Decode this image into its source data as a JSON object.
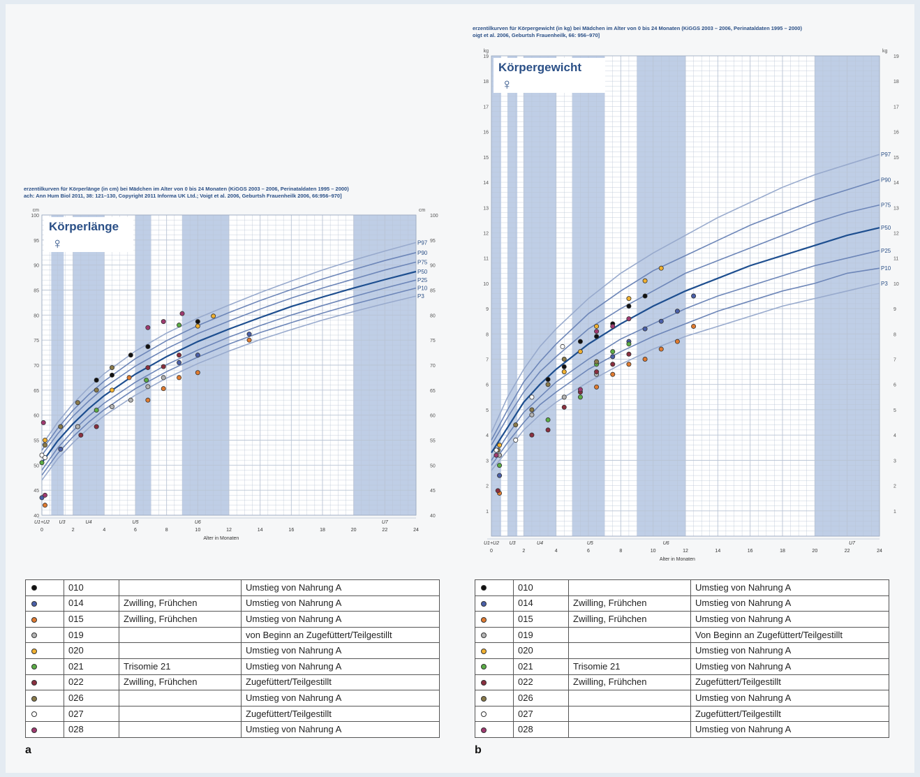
{
  "colors": {
    "accent": "#2a4f86",
    "band": "#a9bddd",
    "grid": "#b9c4d4",
    "median": "#1d4e8f",
    "curve": "#6d86b8",
    "curve_light": "#98aacd"
  },
  "series_colors": {
    "010": "#111111",
    "014": "#4a5fa8",
    "015": "#e07b30",
    "019": "#b3b3b3",
    "020": "#f0b030",
    "021": "#5bac45",
    "022": "#8a2f3f",
    "026": "#8a7a4a",
    "027": "#ffffff",
    "028": "#a03a70"
  },
  "panels": [
    {
      "id": "a",
      "letter": "a",
      "header_line1": "erzentilkurven für Körperlänge (in cm) bei Mädchen im Alter von 0 bis 24 Monaten (KiGGS 2003 – 2006, Perinataldaten 1995 – 2000)",
      "header_line2": "ach: Ann Hum Biol 2011, 38: 121–130, Copyright 2011 Informa UK Ltd.; Voigt et al. 2006, Geburtsh Frauenheilk 2006, 66:956–970]",
      "title": "Körperlänge",
      "symbol": "♀",
      "unit": "cm",
      "xlabel": "Alter in Monaten",
      "u_labels": [
        "U1+U2",
        "U3",
        "U4",
        "U5",
        "U6",
        "U7"
      ],
      "percentile_labels": [
        "P97",
        "P90",
        "P75",
        "P50",
        "P25",
        "P10",
        "P3"
      ]
    },
    {
      "id": "b",
      "letter": "b",
      "header_line1": "erzentilkurven für Körpergewicht (in kg) bei Mädchen im Alter von 0 bis 24 Monaten (KiGGS 2003 – 2006, Perinataldaten 1995 – 2000)",
      "header_line2": "oigt et al. 2006, Geburtsh Frauenheilk, 66: 956–970]",
      "title": "Körpergewicht",
      "symbol": "♀",
      "unit": "kg",
      "xlabel": "Alter in Monaten",
      "u_labels": [
        "U1+U2",
        "U3",
        "U4",
        "U5",
        "U6",
        "U7"
      ],
      "percentile_labels": [
        "P97",
        "P90",
        "P75",
        "P50",
        "P25",
        "P10",
        "P3"
      ]
    }
  ],
  "chart_data": [
    {
      "type": "scatter",
      "title": "Körperlänge",
      "xlabel": "Alter in Monaten",
      "ylabel": "cm",
      "xlim": [
        0,
        24
      ],
      "ylim": [
        40,
        100
      ],
      "xticks": [
        0,
        2,
        4,
        6,
        8,
        10,
        12,
        14,
        16,
        18,
        20,
        22,
        24
      ],
      "yticks": [
        40,
        45,
        50,
        55,
        60,
        65,
        70,
        75,
        80,
        85,
        90,
        95,
        100
      ],
      "grid": true,
      "percentiles": {
        "x": [
          0,
          1,
          2,
          3,
          4,
          6,
          8,
          10,
          12,
          14,
          16,
          18,
          20,
          22,
          24
        ],
        "P97": [
          54,
          58.5,
          62.3,
          65.5,
          68.3,
          72.8,
          76.4,
          79.4,
          82.0,
          84.5,
          86.8,
          89.0,
          91.0,
          92.8,
          94.5
        ],
        "P90": [
          53,
          57.3,
          61.0,
          64.1,
          66.8,
          71.3,
          74.9,
          77.9,
          80.5,
          82.9,
          85.1,
          87.2,
          89.1,
          90.9,
          92.5
        ],
        "P75": [
          52,
          56.2,
          59.8,
          62.8,
          65.5,
          69.8,
          73.3,
          76.3,
          78.8,
          81.2,
          83.4,
          85.4,
          87.2,
          89.0,
          90.6
        ],
        "P50": [
          50.5,
          54.8,
          58.3,
          61.3,
          63.9,
          68.2,
          71.7,
          74.7,
          77.2,
          79.5,
          81.7,
          83.6,
          85.4,
          87.1,
          88.7
        ],
        "P25": [
          49,
          53.4,
          56.9,
          59.8,
          62.4,
          66.6,
          70.1,
          73.0,
          75.6,
          77.9,
          80.0,
          81.9,
          83.7,
          85.4,
          87.0
        ],
        "P10": [
          48,
          52.3,
          55.7,
          58.6,
          61.1,
          65.3,
          68.7,
          71.6,
          74.2,
          76.5,
          78.5,
          80.4,
          82.2,
          83.8,
          85.4
        ],
        "P3": [
          47,
          51.2,
          54.5,
          57.4,
          59.9,
          64.0,
          67.4,
          70.3,
          72.8,
          75.1,
          77.1,
          79.0,
          80.7,
          82.3,
          83.8
        ]
      },
      "bands": [
        [
          0.6,
          1.4
        ],
        [
          2.0,
          4.0
        ],
        [
          6.0,
          7.0
        ],
        [
          9.0,
          12.0
        ],
        [
          20.0,
          24.0
        ]
      ],
      "series": [
        {
          "name": "010",
          "points": [
            [
              3.5,
              67
            ],
            [
              4.5,
              68
            ],
            [
              5.7,
              72
            ],
            [
              6.8,
              73.7
            ],
            [
              10.0,
              78.7
            ]
          ]
        },
        {
          "name": "014",
          "points": [
            [
              0,
              43.5
            ],
            [
              1.2,
              53.2
            ],
            [
              8.8,
              70.5
            ],
            [
              10.0,
              72
            ],
            [
              13.3,
              76.2
            ]
          ]
        },
        {
          "name": "015",
          "points": [
            [
              0.2,
              42
            ],
            [
              5.6,
              67.5
            ],
            [
              6.8,
              63
            ],
            [
              7.8,
              65.3
            ],
            [
              8.8,
              67.5
            ],
            [
              10.0,
              68.5
            ],
            [
              13.3,
              75
            ]
          ]
        },
        {
          "name": "019",
          "points": [
            [
              2.3,
              57.7
            ],
            [
              4.5,
              61.7
            ],
            [
              5.7,
              63
            ],
            [
              6.8,
              65.7
            ],
            [
              7.8,
              67.5
            ]
          ]
        },
        {
          "name": "020",
          "points": [
            [
              0.2,
              55
            ],
            [
              4.5,
              65
            ],
            [
              10.0,
              77.8
            ],
            [
              11.0,
              79.8
            ]
          ]
        },
        {
          "name": "021",
          "points": [
            [
              0,
              50.5
            ],
            [
              3.5,
              61
            ],
            [
              6.7,
              67
            ],
            [
              8.8,
              78
            ]
          ]
        },
        {
          "name": "022",
          "points": [
            [
              2.5,
              56
            ],
            [
              3.5,
              57.7
            ],
            [
              6.8,
              69.5
            ],
            [
              7.8,
              69.7
            ],
            [
              8.8,
              72
            ]
          ]
        },
        {
          "name": "026",
          "points": [
            [
              0.2,
              54
            ],
            [
              1.2,
              57.7
            ],
            [
              2.3,
              62.5
            ],
            [
              3.5,
              65
            ],
            [
              4.5,
              69.5
            ]
          ]
        },
        {
          "name": "027",
          "points": [
            [
              0,
              52
            ],
            [
              0.2,
              51.5
            ]
          ]
        },
        {
          "name": "028",
          "points": [
            [
              0.1,
              58.5
            ],
            [
              0.2,
              44
            ],
            [
              6.8,
              77.5
            ],
            [
              7.8,
              78.7
            ],
            [
              9.0,
              80.3
            ]
          ]
        }
      ]
    },
    {
      "type": "scatter",
      "title": "Körpergewicht",
      "xlabel": "Alter in Monaten",
      "ylabel": "kg",
      "xlim": [
        0,
        24
      ],
      "ylim": [
        0,
        19
      ],
      "xticks": [
        0,
        2,
        4,
        6,
        8,
        10,
        12,
        14,
        16,
        18,
        20,
        22,
        24
      ],
      "yticks": [
        1,
        2,
        3,
        4,
        5,
        6,
        7,
        8,
        9,
        10,
        11,
        12,
        13,
        14,
        15,
        16,
        17,
        18,
        19
      ],
      "grid": true,
      "percentiles": {
        "x": [
          0,
          1,
          2,
          3,
          4,
          6,
          8,
          10,
          12,
          14,
          16,
          18,
          20,
          22,
          24
        ],
        "P97": [
          4.1,
          5.5,
          6.6,
          7.5,
          8.2,
          9.4,
          10.4,
          11.2,
          11.9,
          12.6,
          13.2,
          13.8,
          14.3,
          14.7,
          15.1
        ],
        "P90": [
          3.8,
          5.0,
          6.1,
          6.9,
          7.6,
          8.8,
          9.7,
          10.5,
          11.1,
          11.7,
          12.3,
          12.8,
          13.3,
          13.7,
          14.1
        ],
        "P75": [
          3.6,
          4.7,
          5.7,
          6.5,
          7.1,
          8.2,
          9.0,
          9.7,
          10.4,
          10.9,
          11.4,
          11.9,
          12.4,
          12.8,
          13.1
        ],
        "P50": [
          3.3,
          4.3,
          5.3,
          6.0,
          6.6,
          7.6,
          8.4,
          9.1,
          9.7,
          10.2,
          10.7,
          11.1,
          11.5,
          11.9,
          12.2
        ],
        "P25": [
          3.0,
          4.0,
          4.9,
          5.5,
          6.1,
          7.0,
          7.8,
          8.4,
          9.0,
          9.5,
          9.9,
          10.3,
          10.7,
          11.0,
          11.3
        ],
        "P10": [
          2.8,
          3.7,
          4.5,
          5.2,
          5.7,
          6.6,
          7.3,
          7.9,
          8.4,
          8.9,
          9.3,
          9.7,
          10.0,
          10.4,
          10.6
        ],
        "P3": [
          2.6,
          3.4,
          4.2,
          4.8,
          5.3,
          6.1,
          6.8,
          7.4,
          7.9,
          8.3,
          8.7,
          9.1,
          9.4,
          9.7,
          10.0
        ]
      },
      "bands": [
        [
          0,
          0.6
        ],
        [
          1.0,
          1.6
        ],
        [
          2.0,
          4.0
        ],
        [
          5.0,
          7.0
        ],
        [
          9.0,
          12.0
        ],
        [
          20.0,
          24.0
        ]
      ],
      "series": [
        {
          "name": "010",
          "points": [
            [
              3.5,
              6.2
            ],
            [
              4.5,
              6.7
            ],
            [
              5.5,
              7.7
            ],
            [
              6.5,
              7.9
            ],
            [
              7.5,
              8.4
            ],
            [
              8.5,
              9.1
            ],
            [
              9.5,
              9.5
            ]
          ]
        },
        {
          "name": "014",
          "points": [
            [
              0.5,
              2.4
            ],
            [
              7.5,
              7.1
            ],
            [
              8.5,
              7.7
            ],
            [
              9.5,
              8.2
            ],
            [
              10.5,
              8.5
            ],
            [
              11.5,
              8.9
            ],
            [
              12.5,
              9.5
            ]
          ]
        },
        {
          "name": "015",
          "points": [
            [
              0.5,
              1.7
            ],
            [
              6.5,
              5.9
            ],
            [
              7.5,
              6.4
            ],
            [
              8.5,
              6.8
            ],
            [
              9.5,
              7.0
            ],
            [
              10.5,
              7.4
            ],
            [
              11.5,
              7.7
            ],
            [
              12.5,
              8.3
            ]
          ]
        },
        {
          "name": "019",
          "points": [
            [
              0.5,
              3.2
            ],
            [
              2.5,
              4.8
            ],
            [
              4.5,
              5.5
            ],
            [
              6.5,
              6.4
            ]
          ]
        },
        {
          "name": "020",
          "points": [
            [
              0.5,
              3.6
            ],
            [
              4.5,
              6.5
            ],
            [
              5.5,
              7.3
            ],
            [
              6.5,
              8.3
            ],
            [
              8.5,
              9.4
            ],
            [
              9.5,
              10.1
            ],
            [
              10.5,
              10.6
            ]
          ]
        },
        {
          "name": "021",
          "points": [
            [
              0.5,
              2.8
            ],
            [
              3.5,
              4.6
            ],
            [
              5.5,
              5.5
            ],
            [
              6.5,
              6.8
            ],
            [
              7.5,
              7.3
            ],
            [
              8.5,
              7.6
            ]
          ]
        },
        {
          "name": "022",
          "points": [
            [
              0.4,
              1.8
            ],
            [
              2.5,
              4.0
            ],
            [
              3.5,
              4.2
            ],
            [
              4.5,
              5.1
            ],
            [
              5.5,
              5.7
            ],
            [
              6.5,
              6.5
            ],
            [
              7.5,
              6.8
            ],
            [
              8.5,
              7.2
            ]
          ]
        },
        {
          "name": "026",
          "points": [
            [
              0.4,
              3.4
            ],
            [
              1.5,
              4.4
            ],
            [
              2.5,
              5.0
            ],
            [
              3.5,
              6.0
            ],
            [
              4.5,
              7.0
            ],
            [
              6.5,
              6.9
            ]
          ]
        },
        {
          "name": "027",
          "points": [
            [
              0.3,
              3.4
            ],
            [
              1.5,
              3.8
            ],
            [
              2.5,
              5.5
            ],
            [
              4.4,
              7.5
            ]
          ]
        },
        {
          "name": "028",
          "points": [
            [
              0.3,
              3.2
            ],
            [
              5.5,
              5.8
            ],
            [
              6.5,
              8.1
            ],
            [
              7.5,
              8.3
            ],
            [
              8.5,
              8.6
            ]
          ]
        }
      ]
    }
  ],
  "legend_a": {
    "rows": [
      {
        "id": "010",
        "note": "",
        "feeding": "Umstieg von Nahrung A"
      },
      {
        "id": "014",
        "note": "Zwilling, Frühchen",
        "feeding": "Umstieg von Nahrung A"
      },
      {
        "id": "015",
        "note": "Zwilling, Frühchen",
        "feeding": "Umstieg von Nahrung A"
      },
      {
        "id": "019",
        "note": "",
        "feeding": "von Beginn an Zugefüttert/Teilgestillt"
      },
      {
        "id": "020",
        "note": "",
        "feeding": "Umstieg von Nahrung A"
      },
      {
        "id": "021",
        "note": "Trisomie 21",
        "feeding": "Umstieg von Nahrung A"
      },
      {
        "id": "022",
        "note": "Zwilling, Frühchen",
        "feeding": "Zugefüttert/Teilgestillt"
      },
      {
        "id": "026",
        "note": "",
        "feeding": "Umstieg von Nahrung A"
      },
      {
        "id": "027",
        "note": "",
        "feeding": "Zugefüttert/Teilgestillt"
      },
      {
        "id": "028",
        "note": "",
        "feeding": "Umstieg von Nahrung A"
      }
    ]
  },
  "legend_b": {
    "rows": [
      {
        "id": "010",
        "note": "",
        "feeding": "Umstieg von Nahrung A"
      },
      {
        "id": "014",
        "note": "Zwilling, Frühchen",
        "feeding": "Umstieg von Nahrung A"
      },
      {
        "id": "015",
        "note": "Zwilling, Frühchen",
        "feeding": "Umstieg von Nahrung A"
      },
      {
        "id": "019",
        "note": "",
        "feeding": "Von Beginn an Zugefüttert/Teilgestillt"
      },
      {
        "id": "020",
        "note": "",
        "feeding": "Umstieg von Nahrung A"
      },
      {
        "id": "021",
        "note": "Trisomie 21",
        "feeding": "Umstieg von Nahrung A"
      },
      {
        "id": "022",
        "note": "Zwilling, Frühchen",
        "feeding": "Zugefüttert/Teilgestillt"
      },
      {
        "id": "026",
        "note": "",
        "feeding": "Umstieg von Nahrung A"
      },
      {
        "id": "027",
        "note": "",
        "feeding": "Zugefüttert/Teilgestillt"
      },
      {
        "id": "028",
        "note": "",
        "feeding": "Umstieg von Nahrung A"
      }
    ]
  }
}
